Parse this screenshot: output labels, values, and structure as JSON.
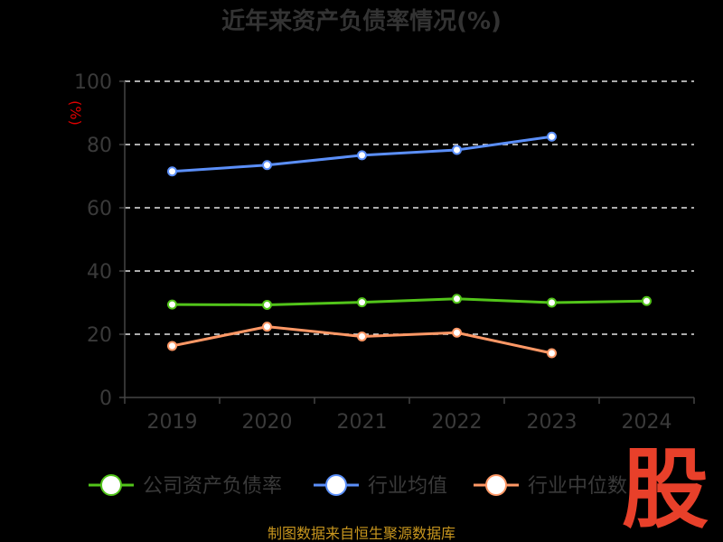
{
  "chart_data": {
    "type": "line",
    "title": "近年来资产负债率情况(%)",
    "ylabel": "(%)",
    "categories": [
      "2019",
      "2020",
      "2021",
      "2022",
      "2023",
      "2024"
    ],
    "ylim": [
      0,
      100
    ],
    "yticks": [
      0,
      20,
      40,
      60,
      80,
      100
    ],
    "grid": true,
    "legend_position": "bottom",
    "series": [
      {
        "name": "公司资产负债率",
        "color": "#52c41a",
        "values": [
          29.4,
          29.3,
          30.1,
          31.2,
          30.0,
          30.5
        ]
      },
      {
        "name": "行业均值",
        "color": "#5b8ff9",
        "values": [
          71.5,
          73.5,
          76.6,
          78.3,
          82.5,
          null
        ]
      },
      {
        "name": "行业中位数",
        "color": "#ff9866",
        "values": [
          16.3,
          22.4,
          19.3,
          20.5,
          14.0,
          null
        ]
      }
    ]
  },
  "footer": {
    "source": "制图数据来自恒生聚源数据库"
  },
  "watermark": "股"
}
